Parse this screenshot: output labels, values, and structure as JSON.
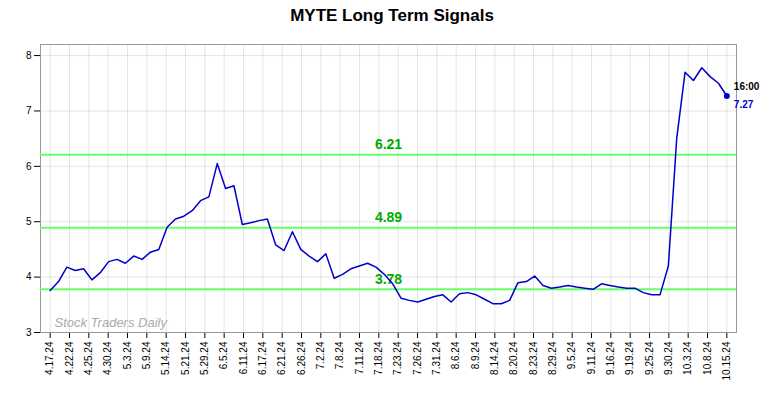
{
  "chart_data": {
    "type": "line",
    "title": "MYTE Long Term Signals",
    "x": [
      0,
      0.4321,
      0.8642,
      1.2963,
      1.7284,
      2.1605,
      2.5926,
      3.0247,
      3.4568,
      3.8889,
      4.321,
      4.7531,
      5.1852,
      5.6173,
      6.0494,
      6.4815,
      6.9136,
      7.3457,
      7.7778,
      8.2099,
      8.642,
      9.0741,
      9.5062,
      9.9383,
      10.3704,
      10.8025,
      11.2346,
      11.6667,
      12.0988,
      12.5309,
      12.963,
      13.3951,
      13.8272,
      14.2593,
      14.6914,
      15.1235,
      15.5556,
      15.9877,
      16.4198,
      16.8519,
      17.284,
      17.716,
      18.1481,
      18.5802,
      19.0123,
      19.4444,
      19.8765,
      20.3086,
      20.7407,
      21.1728,
      21.6049,
      22.037,
      22.4691,
      22.9012,
      23.3333,
      23.7654,
      24.1975,
      24.6296,
      25.0617,
      25.4938,
      25.9259,
      26.358,
      26.7901,
      27.2222,
      27.6543,
      28.0864,
      28.5185,
      28.9506,
      29.3827,
      29.8148,
      30.2469,
      30.679,
      31.1111,
      31.5432,
      31.9753,
      32.4074,
      32.8395,
      33.2716,
      33.7037,
      34.1358,
      34.5679,
      35
    ],
    "values": [
      3.76,
      3.92,
      4.18,
      4.12,
      4.15,
      3.95,
      4.08,
      4.28,
      4.32,
      4.25,
      4.38,
      4.32,
      4.45,
      4.5,
      4.9,
      5.05,
      5.1,
      5.2,
      5.38,
      5.45,
      6.05,
      5.6,
      5.65,
      4.95,
      4.98,
      5.02,
      5.05,
      4.58,
      4.48,
      4.82,
      4.5,
      4.38,
      4.28,
      4.42,
      3.98,
      4.05,
      4.15,
      4.2,
      4.25,
      4.18,
      4.05,
      3.88,
      3.62,
      3.58,
      3.55,
      3.6,
      3.65,
      3.68,
      3.55,
      3.7,
      3.72,
      3.68,
      3.6,
      3.52,
      3.52,
      3.58,
      3.9,
      3.92,
      4.02,
      3.85,
      3.8,
      3.82,
      3.85,
      3.82,
      3.8,
      3.78,
      3.88,
      3.85,
      3.82,
      3.8,
      3.8,
      3.72,
      3.68,
      3.68,
      4.2,
      6.5,
      7.7,
      7.55,
      7.78,
      7.62,
      7.5,
      7.27
    ],
    "color": "#0000cc",
    "xlim": [
      -0.5,
      35.5
    ],
    "xticks": [
      {
        "value": 0,
        "label": "4.17.24"
      },
      {
        "value": 1,
        "label": "4.22.24"
      },
      {
        "value": 2,
        "label": "4.25.24"
      },
      {
        "value": 3,
        "label": "4.30.24"
      },
      {
        "value": 4,
        "label": "5.3.24"
      },
      {
        "value": 5,
        "label": "5.9.24"
      },
      {
        "value": 6,
        "label": "5.14.24"
      },
      {
        "value": 7,
        "label": "5.21.24"
      },
      {
        "value": 8,
        "label": "5.29.24"
      },
      {
        "value": 9,
        "label": "6.5.24"
      },
      {
        "value": 10,
        "label": "6.11.24"
      },
      {
        "value": 11,
        "label": "6.17.24"
      },
      {
        "value": 12,
        "label": "6.21.24"
      },
      {
        "value": 13,
        "label": "6.26.24"
      },
      {
        "value": 14,
        "label": "7.2.24"
      },
      {
        "value": 15,
        "label": "7.8.24"
      },
      {
        "value": 16,
        "label": "7.11.24"
      },
      {
        "value": 17,
        "label": "7.18.24"
      },
      {
        "value": 18,
        "label": "7.23.24"
      },
      {
        "value": 19,
        "label": "7.26.24"
      },
      {
        "value": 20,
        "label": "7.31.24"
      },
      {
        "value": 21,
        "label": "8.6.24"
      },
      {
        "value": 22,
        "label": "8.9.24"
      },
      {
        "value": 23,
        "label": "8.14.24"
      },
      {
        "value": 24,
        "label": "8.20.24"
      },
      {
        "value": 25,
        "label": "8.23.24"
      },
      {
        "value": 26,
        "label": "8.29.24"
      },
      {
        "value": 27,
        "label": "9.5.24"
      },
      {
        "value": 28,
        "label": "9.11.24"
      },
      {
        "value": 29,
        "label": "9.16.24"
      },
      {
        "value": 30,
        "label": "9.19.24"
      },
      {
        "value": 31,
        "label": "9.25.24"
      },
      {
        "value": 32,
        "label": "9.30.24"
      },
      {
        "value": 33,
        "label": "10.3.24"
      },
      {
        "value": 34,
        "label": "10.8.24"
      },
      {
        "value": 35,
        "label": "10.15.24"
      }
    ],
    "ylim": [
      3.0,
      8.2
    ],
    "yticks": [
      3,
      4,
      5,
      6,
      7,
      8
    ],
    "grid": true,
    "reference_lines": [
      {
        "value": 3.78,
        "label": "3.78",
        "color": "#66ff66",
        "label_color": "#00aa00"
      },
      {
        "value": 4.89,
        "label": "4.89",
        "color": "#66ff66",
        "label_color": "#00aa00"
      },
      {
        "value": 6.21,
        "label": "6.21",
        "color": "#66ff66",
        "label_color": "#00aa00"
      }
    ],
    "end_labels": [
      {
        "text": "16:00",
        "color": "#000000"
      },
      {
        "text": "7.27",
        "color": "#0000cc"
      }
    ],
    "watermark": {
      "text": "Stock Traders Daily",
      "color": "#aaaaaa"
    }
  }
}
